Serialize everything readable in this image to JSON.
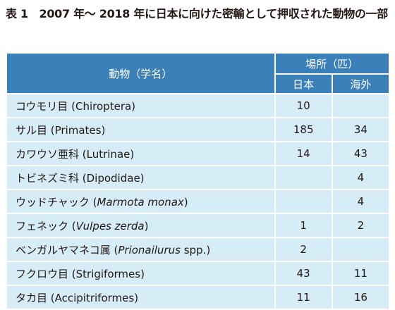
{
  "title": "表 1　2007 年～ 2018 年に日本に向けた密輸として押収された動物の一部",
  "table": {
    "header": {
      "animal": "動物（学名）",
      "place": "場所（匹）",
      "japan": "日本",
      "overseas": "海外"
    },
    "rows": [
      {
        "name": [
          {
            "text": "コウモリ目 (Chiroptera)",
            "italic": false
          }
        ],
        "japan": 10,
        "overseas": null
      },
      {
        "name": [
          {
            "text": "サル目 (Primates)",
            "italic": false
          }
        ],
        "japan": 185,
        "overseas": 34
      },
      {
        "name": [
          {
            "text": "カワウソ亜科 (Lutrinae)",
            "italic": false
          }
        ],
        "japan": 14,
        "overseas": 43
      },
      {
        "name": [
          {
            "text": "トビネズミ科 (Dipodidae)",
            "italic": false
          }
        ],
        "japan": null,
        "overseas": 4
      },
      {
        "name": [
          {
            "text": "ウッドチャック (",
            "italic": false
          },
          {
            "text": "Marmota monax",
            "italic": true
          },
          {
            "text": ")",
            "italic": false
          }
        ],
        "japan": null,
        "overseas": 4
      },
      {
        "name": [
          {
            "text": "フェネック (",
            "italic": false
          },
          {
            "text": "Vulpes zerda",
            "italic": true
          },
          {
            "text": ")",
            "italic": false
          }
        ],
        "japan": 1,
        "overseas": 2
      },
      {
        "name": [
          {
            "text": "ベンガルヤマネコ属 (",
            "italic": false
          },
          {
            "text": "Prionailurus",
            "italic": true
          },
          {
            "text": " spp.)",
            "italic": false
          }
        ],
        "japan": 2,
        "overseas": null
      },
      {
        "name": [
          {
            "text": "フクロウ目 (Strigiformes)",
            "italic": false
          }
        ],
        "japan": 43,
        "overseas": 11
      },
      {
        "name": [
          {
            "text": "タカ目 (Accipitriformes)",
            "italic": false
          }
        ],
        "japan": 11,
        "overseas": 16
      }
    ]
  }
}
